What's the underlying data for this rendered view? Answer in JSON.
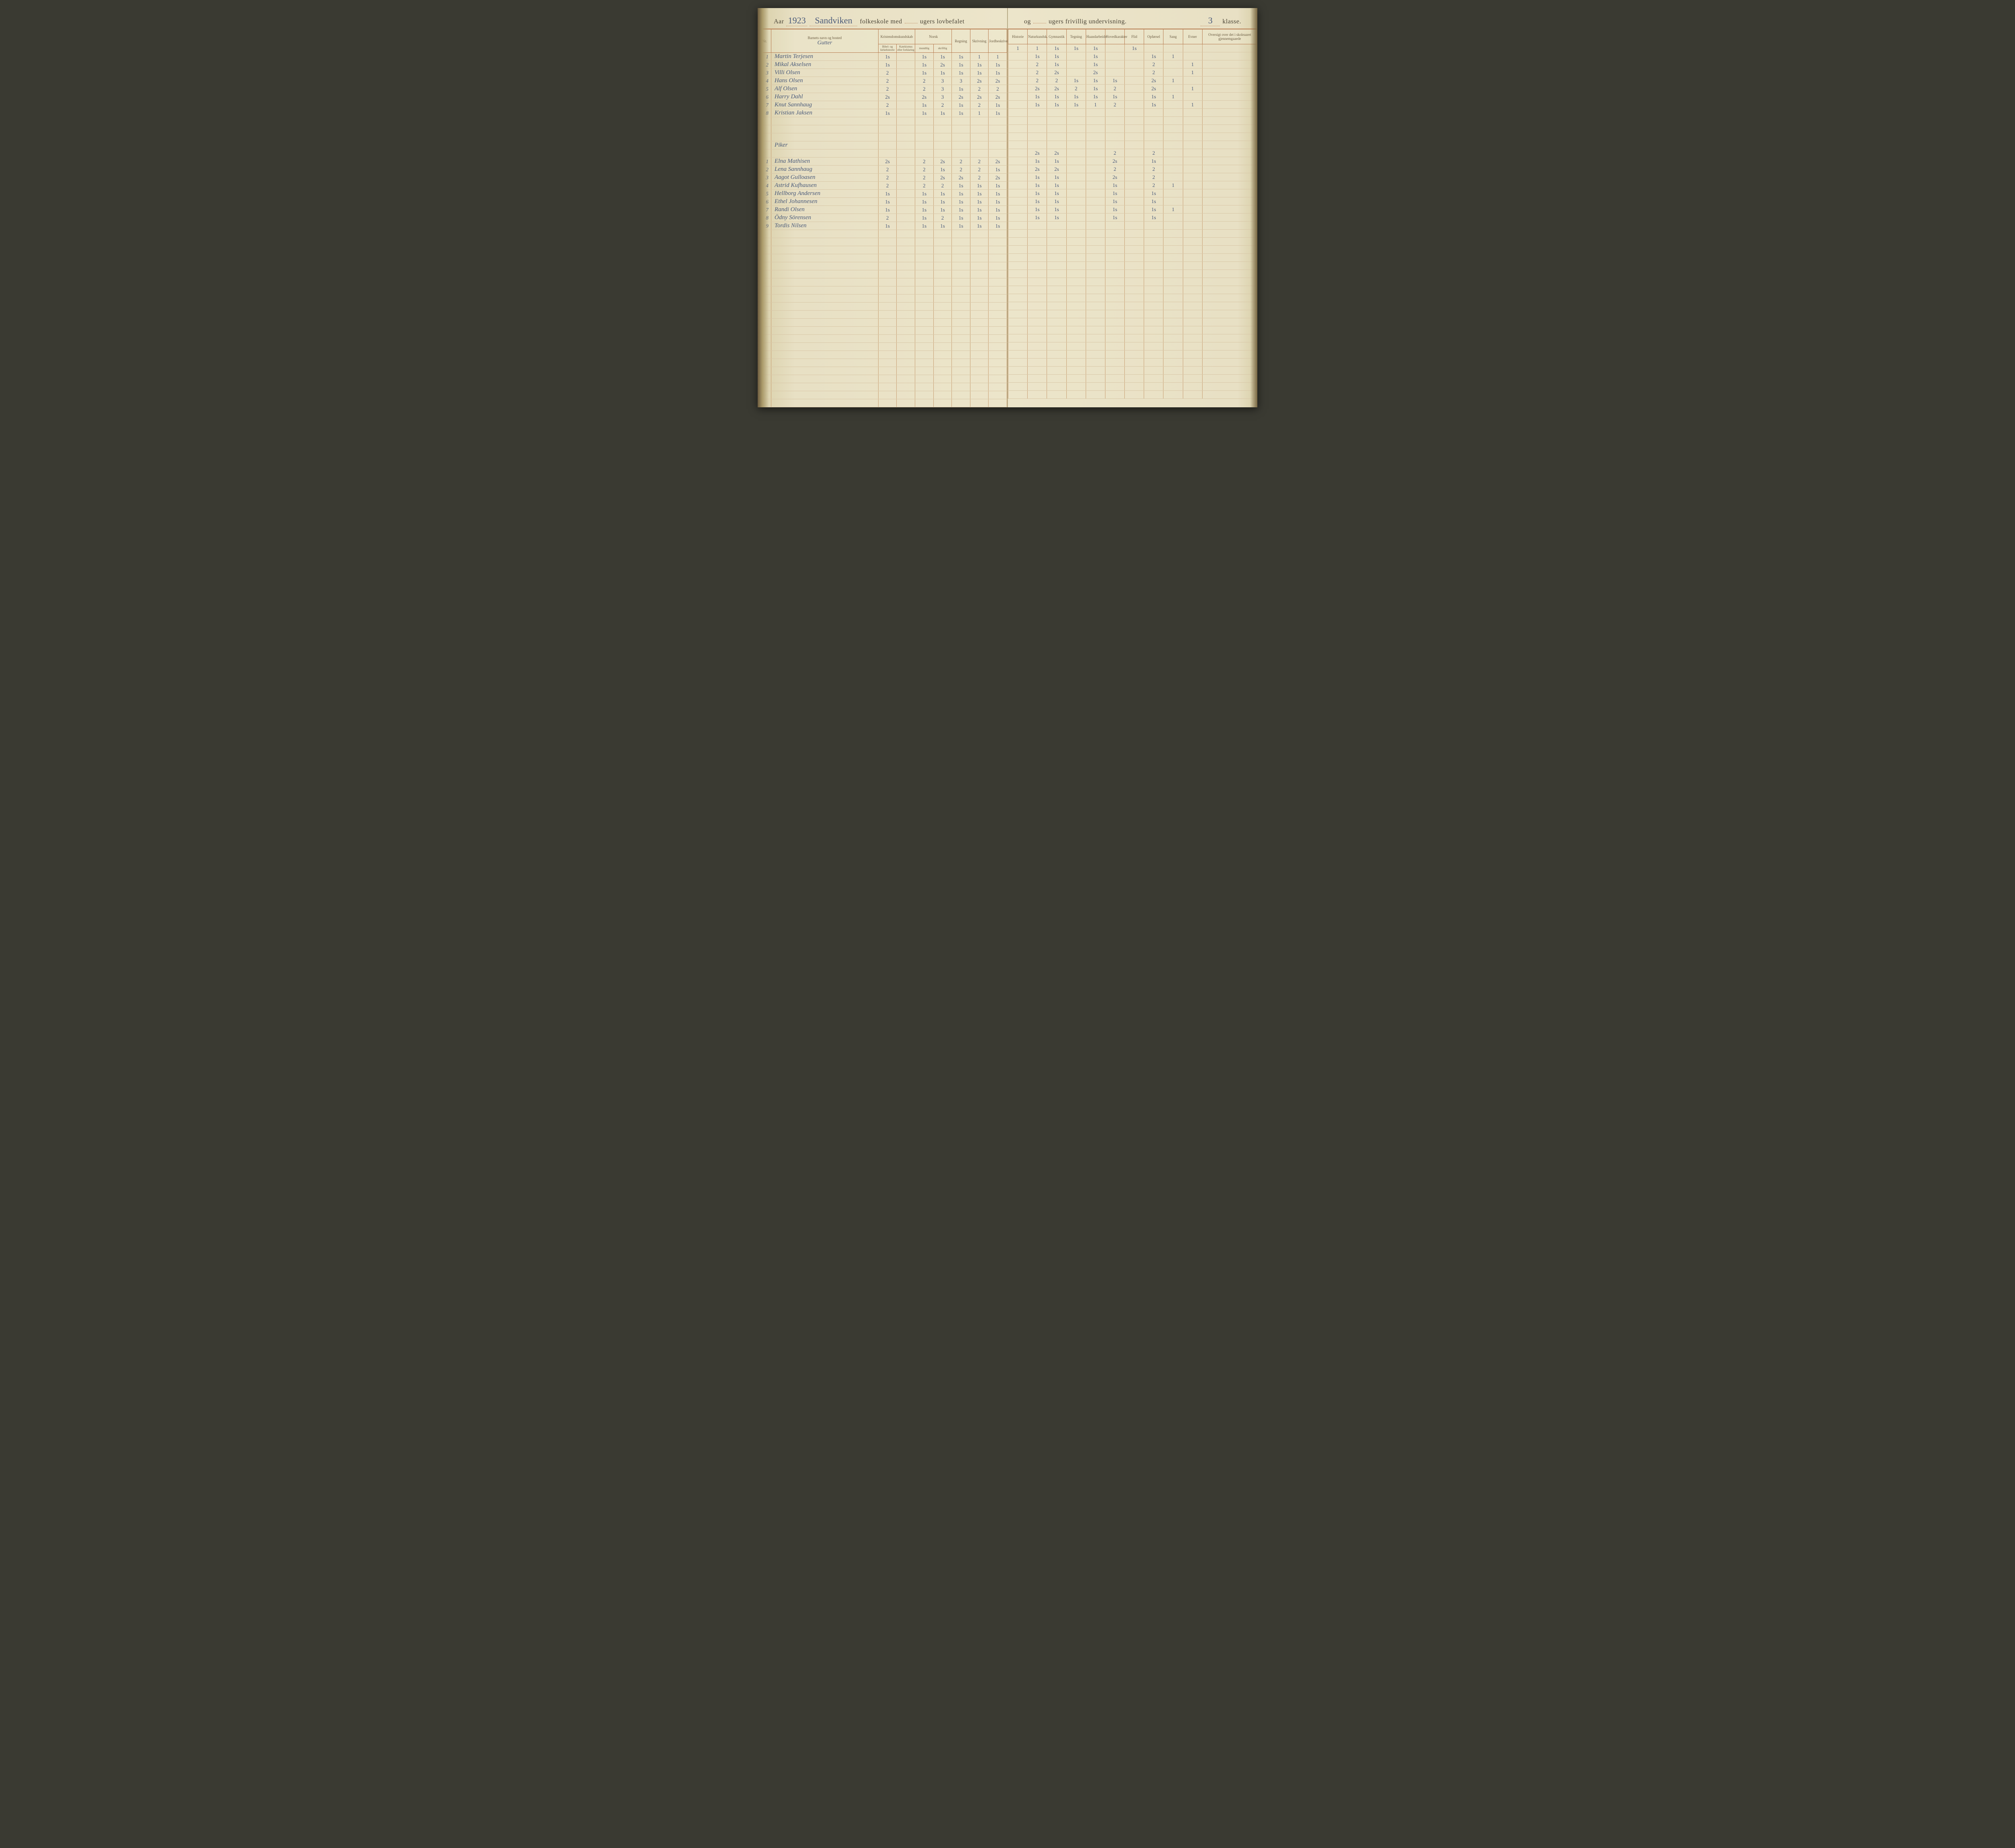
{
  "header": {
    "aar_label": "Aar",
    "year": "1923",
    "school": "Sandviken",
    "line1_a": "folkeskole med",
    "weeks_mandatory": "",
    "line1_b": "ugers lovbefalet",
    "og": "og",
    "weeks_voluntary": "",
    "line1_c": "ugers frivillig undervisning.",
    "klasse_num": "3",
    "klasse_label": "klasse."
  },
  "columns_left": {
    "nr": "Nr.",
    "name": "Barnets navn og bosted",
    "name_sub": "Gutter",
    "kristen": "Kristendomskundskab",
    "kristen_a": "Bibel- og kirkehistorie",
    "kristen_b": "Katekismus eller forklaring",
    "norsk": "Norsk",
    "norsk_a": "mundtlig",
    "norsk_b": "skriftlig",
    "regning": "Regning",
    "skriv": "Skrivning",
    "jord": "Jordbeskrivelse"
  },
  "columns_right": {
    "historie": "Historie",
    "natur": "Naturkundsk.",
    "gym": "Gymnastik",
    "tegning": "Tegning",
    "haand": "Haandarbeide",
    "hoved": "Hovedkarakter",
    "flid": "Flid",
    "opf": "Opførsel",
    "sang": "Sang",
    "evner": "Evner",
    "oversigt": "Oversigt over det i skoleaaret gjennemgaaede"
  },
  "section_boys": "Gutter",
  "section_girls": "Piker",
  "boys": [
    {
      "nr": "1",
      "name": "Martin Terjesen",
      "g": [
        "1s",
        "",
        "1s",
        "1s",
        "1s",
        "1",
        "1"
      ],
      "r": [
        "1",
        "1",
        "1s",
        "1s",
        "1s",
        "",
        "1s",
        "",
        "",
        ""
      ]
    },
    {
      "nr": "2",
      "name": "Mikal Akselsen",
      "g": [
        "1s",
        "",
        "1s",
        "2s",
        "1s",
        "1s",
        "1s"
      ],
      "r": [
        "",
        "1s",
        "1s",
        "",
        "1s",
        "",
        "",
        "1s",
        "1",
        ""
      ]
    },
    {
      "nr": "3",
      "name": "Villi Olsen",
      "g": [
        "2",
        "",
        "1s",
        "1s",
        "1s",
        "1s",
        "1s"
      ],
      "r": [
        "",
        "2",
        "1s",
        "",
        "1s",
        "",
        "",
        "2",
        "",
        "1"
      ]
    },
    {
      "nr": "4",
      "name": "Hans Olsen",
      "g": [
        "2",
        "",
        "2",
        "3",
        "3",
        "2s",
        "2s"
      ],
      "r": [
        "",
        "2",
        "2s",
        "",
        "2s",
        "",
        "",
        "2",
        "",
        "1"
      ]
    },
    {
      "nr": "5",
      "name": "Alf Olsen",
      "g": [
        "2",
        "",
        "2",
        "3",
        "1s",
        "2",
        "2"
      ],
      "r": [
        "",
        "2",
        "2",
        "1s",
        "1s",
        "1s",
        "",
        "2s",
        "1",
        ""
      ]
    },
    {
      "nr": "6",
      "name": "Harry Dahl",
      "g": [
        "2s",
        "",
        "2s",
        "3",
        "2s",
        "2s",
        "2s"
      ],
      "r": [
        "",
        "2s",
        "2s",
        "2",
        "1s",
        "2",
        "",
        "2s",
        "",
        "1"
      ]
    },
    {
      "nr": "7",
      "name": "Knut Sannhaug",
      "g": [
        "2",
        "",
        "1s",
        "2",
        "1s",
        "2",
        "1s"
      ],
      "r": [
        "",
        "1s",
        "1s",
        "1s",
        "1s",
        "1s",
        "",
        "1s",
        "1",
        ""
      ]
    },
    {
      "nr": "8",
      "name": "Kristian Jaksen",
      "g": [
        "1s",
        "",
        "1s",
        "1s",
        "1s",
        "1",
        "1s"
      ],
      "r": [
        "",
        "1s",
        "1s",
        "1s",
        "1",
        "2",
        "",
        "1s",
        "",
        "1"
      ]
    }
  ],
  "girls": [
    {
      "nr": "1",
      "name": "Elna Mathisen",
      "g": [
        "2s",
        "",
        "2",
        "2s",
        "2",
        "2",
        "2s"
      ],
      "r": [
        "",
        "2s",
        "2s",
        "",
        "",
        "2",
        "",
        "2",
        "",
        ""
      ]
    },
    {
      "nr": "2",
      "name": "Lena Sannhaug",
      "g": [
        "2",
        "",
        "2",
        "1s",
        "2",
        "2",
        "1s"
      ],
      "r": [
        "",
        "1s",
        "1s",
        "",
        "",
        "2s",
        "",
        "1s",
        "",
        ""
      ]
    },
    {
      "nr": "3",
      "name": "Aagot Gulloasen",
      "g": [
        "2",
        "",
        "2",
        "2s",
        "2s",
        "2",
        "2s"
      ],
      "r": [
        "",
        "2s",
        "2s",
        "",
        "",
        "2",
        "",
        "2",
        "",
        ""
      ]
    },
    {
      "nr": "4",
      "name": "Astrid Kufhausen",
      "g": [
        "2",
        "",
        "2",
        "2",
        "1s",
        "1s",
        "1s"
      ],
      "r": [
        "",
        "1s",
        "1s",
        "",
        "",
        "2s",
        "",
        "2",
        "",
        ""
      ]
    },
    {
      "nr": "5",
      "name": "Hellborg Andersen",
      "g": [
        "1s",
        "",
        "1s",
        "1s",
        "1s",
        "1s",
        "1s"
      ],
      "r": [
        "",
        "1s",
        "1s",
        "",
        "",
        "1s",
        "",
        "2",
        "1",
        ""
      ]
    },
    {
      "nr": "6",
      "name": "Ethel Johannesen",
      "g": [
        "1s",
        "",
        "1s",
        "1s",
        "1s",
        "1s",
        "1s"
      ],
      "r": [
        "",
        "1s",
        "1s",
        "",
        "",
        "1s",
        "",
        "1s",
        "",
        ""
      ]
    },
    {
      "nr": "7",
      "name": "Randi Olsen",
      "g": [
        "1s",
        "",
        "1s",
        "1s",
        "1s",
        "1s",
        "1s"
      ],
      "r": [
        "",
        "1s",
        "1s",
        "",
        "",
        "1s",
        "",
        "1s",
        "",
        ""
      ]
    },
    {
      "nr": "8",
      "name": "Ödny Sörensen",
      "g": [
        "2",
        "",
        "1s",
        "2",
        "1s",
        "1s",
        "1s"
      ],
      "r": [
        "",
        "1s",
        "1s",
        "",
        "",
        "1s",
        "",
        "1s",
        "1",
        ""
      ]
    },
    {
      "nr": "9",
      "name": "Tordis Nilsen",
      "g": [
        "1s",
        "",
        "1s",
        "1s",
        "1s",
        "1s",
        "1s"
      ],
      "r": [
        "",
        "1s",
        "1s",
        "",
        "",
        "1s",
        "",
        "1s",
        "",
        ""
      ]
    }
  ],
  "blank_rows": 22,
  "colors": {
    "paper": "#ece5ca",
    "rule": "#b87d52",
    "ink": "#4a5a7a",
    "print": "#6b5c42"
  }
}
